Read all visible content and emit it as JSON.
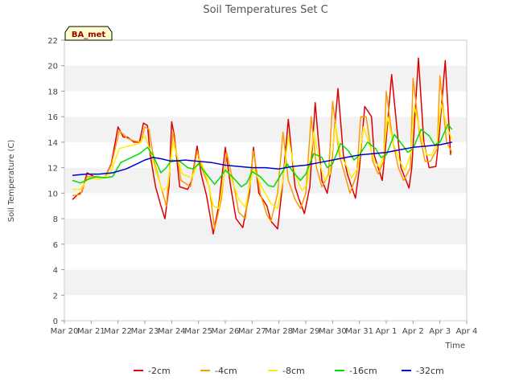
{
  "chart_data": {
    "type": "line",
    "title": "Soil Temperatures Set C",
    "xlabel": "Time",
    "ylabel": "Soil Temperature (C)",
    "badge": "BA_met",
    "xlim": [
      0,
      15
    ],
    "ylim": [
      0,
      22
    ],
    "y_ticks": [
      0,
      2,
      4,
      6,
      8,
      10,
      12,
      14,
      16,
      18,
      20,
      22
    ],
    "x_ticks": [
      {
        "pos": 0,
        "label": "Mar 20"
      },
      {
        "pos": 1,
        "label": "Mar 21"
      },
      {
        "pos": 2,
        "label": "Mar 22"
      },
      {
        "pos": 3,
        "label": "Mar 23"
      },
      {
        "pos": 4,
        "label": "Mar 24"
      },
      {
        "pos": 5,
        "label": "Mar 25"
      },
      {
        "pos": 6,
        "label": "Mar 26"
      },
      {
        "pos": 7,
        "label": "Mar 27"
      },
      {
        "pos": 8,
        "label": "Mar 28"
      },
      {
        "pos": 9,
        "label": "Mar 29"
      },
      {
        "pos": 10,
        "label": "Mar 30"
      },
      {
        "pos": 11,
        "label": "Mar 31"
      },
      {
        "pos": 12,
        "label": "Apr 1"
      },
      {
        "pos": 13,
        "label": "Apr 2"
      },
      {
        "pos": 14,
        "label": "Apr 3"
      },
      {
        "pos": 15,
        "label": "Apr 4"
      }
    ],
    "grid": "horizontal bands",
    "legend_position": "bottom",
    "series": [
      {
        "name": "-2cm",
        "color": "#dd0000",
        "x": [
          0.3,
          0.5,
          0.65,
          0.85,
          1.1,
          1.5,
          1.75,
          2.0,
          2.2,
          2.35,
          2.6,
          2.8,
          2.95,
          3.1,
          3.2,
          3.4,
          3.6,
          3.75,
          3.9,
          4.0,
          4.1,
          4.3,
          4.6,
          4.75,
          4.95,
          5.1,
          5.3,
          5.55,
          5.75,
          6.0,
          6.2,
          6.4,
          6.65,
          6.9,
          7.05,
          7.25,
          7.55,
          7.7,
          7.95,
          8.15,
          8.35,
          8.6,
          8.75,
          8.95,
          9.15,
          9.35,
          9.6,
          9.8,
          9.95,
          10.2,
          10.4,
          10.55,
          10.85,
          11.0,
          11.2,
          11.45,
          11.55,
          11.85,
          11.95,
          12.2,
          12.45,
          12.55,
          12.85,
          12.95,
          13.2,
          13.4,
          13.6,
          13.85,
          13.95,
          14.2,
          14.4
        ],
        "y": [
          9.5,
          9.9,
          10.1,
          11.6,
          11.3,
          11.2,
          12.3,
          15.2,
          14.4,
          14.4,
          14.0,
          14.0,
          15.5,
          15.3,
          13.0,
          10.5,
          9.0,
          8.0,
          10.5,
          15.6,
          14.5,
          10.5,
          10.3,
          11.0,
          13.7,
          11.5,
          9.8,
          6.8,
          9.0,
          13.6,
          10.5,
          8.0,
          7.3,
          10.0,
          13.6,
          10.0,
          9.0,
          7.8,
          7.2,
          11.0,
          15.8,
          10.5,
          9.5,
          8.4,
          10.5,
          17.1,
          11.0,
          10.0,
          12.0,
          18.2,
          13.0,
          11.5,
          9.6,
          12.0,
          16.8,
          16.0,
          13.0,
          11.0,
          13.0,
          19.3,
          14.0,
          12.0,
          10.4,
          12.0,
          20.6,
          14.0,
          12.0,
          12.1,
          14.0,
          20.4,
          13.0
        ]
      },
      {
        "name": "-4cm",
        "color": "#ff9900",
        "x": [
          0.3,
          0.6,
          0.85,
          1.1,
          1.5,
          1.75,
          2.05,
          2.35,
          2.6,
          2.85,
          3.0,
          3.15,
          3.35,
          3.6,
          3.8,
          4.05,
          4.35,
          4.7,
          4.95,
          5.15,
          5.4,
          5.6,
          5.85,
          6.05,
          6.3,
          6.5,
          6.75,
          7.05,
          7.3,
          7.55,
          7.7,
          7.95,
          8.15,
          8.35,
          8.6,
          8.8,
          9.0,
          9.2,
          9.4,
          9.6,
          9.85,
          10.0,
          10.25,
          10.45,
          10.65,
          10.9,
          11.05,
          11.25,
          11.5,
          11.7,
          11.9,
          12.0,
          12.25,
          12.45,
          12.65,
          12.9,
          13.0,
          13.25,
          13.45,
          13.65,
          13.9,
          14.0,
          14.25,
          14.45
        ],
        "y": [
          9.8,
          9.9,
          11.3,
          11.3,
          11.2,
          12.2,
          14.9,
          14.3,
          14.1,
          14.0,
          15.2,
          15.0,
          12.5,
          10.5,
          9.0,
          14.8,
          11.0,
          10.5,
          13.3,
          11.8,
          10.5,
          7.2,
          9.5,
          13.2,
          10.8,
          8.5,
          8.0,
          13.3,
          10.0,
          8.3,
          7.8,
          10.0,
          14.8,
          11.0,
          9.5,
          8.8,
          10.0,
          16.0,
          12.0,
          10.5,
          11.5,
          17.2,
          13.0,
          11.5,
          10.0,
          11.5,
          16.0,
          16.0,
          12.5,
          11.5,
          12.5,
          18.0,
          14.0,
          12.0,
          11.0,
          12.0,
          19.0,
          14.5,
          12.5,
          12.5,
          13.5,
          19.2,
          14.0,
          13.2
        ]
      },
      {
        "name": "-8cm",
        "color": "#ffee00",
        "x": [
          0.3,
          0.6,
          0.9,
          1.3,
          1.7,
          2.05,
          2.4,
          2.8,
          3.0,
          3.2,
          3.45,
          3.65,
          3.85,
          4.05,
          4.4,
          4.75,
          5.05,
          5.3,
          5.55,
          5.75,
          6.0,
          6.2,
          6.5,
          6.75,
          7.05,
          7.35,
          7.7,
          7.95,
          8.15,
          8.35,
          8.6,
          8.85,
          9.05,
          9.3,
          9.5,
          9.7,
          9.9,
          10.1,
          10.3,
          10.55,
          10.7,
          10.95,
          11.15,
          11.35,
          11.55,
          11.75,
          11.9,
          12.05,
          12.25,
          12.5,
          12.7,
          12.9,
          13.05,
          13.3,
          13.5,
          13.7,
          13.9,
          14.05,
          14.3,
          14.45
        ],
        "y": [
          10.3,
          10.3,
          11.2,
          11.1,
          11.5,
          13.5,
          13.7,
          13.9,
          14.5,
          13.3,
          11.5,
          10.2,
          10.5,
          14.0,
          11.5,
          11.2,
          12.7,
          11.3,
          9.0,
          8.8,
          12.0,
          11.3,
          9.5,
          8.9,
          12.0,
          10.5,
          9.2,
          8.8,
          11.0,
          14.5,
          11.5,
          10.2,
          10.7,
          14.8,
          12.5,
          11.0,
          11.5,
          15.4,
          13.0,
          12.0,
          11.2,
          12.0,
          15.2,
          14.0,
          12.5,
          12.0,
          13.0,
          16.0,
          14.0,
          12.5,
          11.8,
          13.0,
          16.8,
          14.5,
          13.0,
          13.0,
          14.0,
          17.0,
          15.0,
          14.2
        ]
      },
      {
        "name": "-16cm",
        "color": "#00dd00",
        "x": [
          0.3,
          0.6,
          0.9,
          1.2,
          1.5,
          1.8,
          2.1,
          2.5,
          2.8,
          3.1,
          3.3,
          3.6,
          3.8,
          4.0,
          4.3,
          4.6,
          4.8,
          5.0,
          5.3,
          5.6,
          5.8,
          6.0,
          6.3,
          6.6,
          6.8,
          7.0,
          7.3,
          7.6,
          7.8,
          8.0,
          8.3,
          8.6,
          8.8,
          9.0,
          9.3,
          9.6,
          9.8,
          10.0,
          10.3,
          10.6,
          10.8,
          11.0,
          11.3,
          11.6,
          11.8,
          12.0,
          12.3,
          12.6,
          12.8,
          13.0,
          13.3,
          13.6,
          13.8,
          14.0,
          14.3,
          14.45
        ],
        "y": [
          11.0,
          10.8,
          11.1,
          11.3,
          11.2,
          11.3,
          12.4,
          12.8,
          13.1,
          13.6,
          13.0,
          11.6,
          12.0,
          12.6,
          12.5,
          12.0,
          11.9,
          12.3,
          11.5,
          10.7,
          11.2,
          11.8,
          11.2,
          10.5,
          10.8,
          11.7,
          11.3,
          10.6,
          10.5,
          11.2,
          12.3,
          11.5,
          11.0,
          11.5,
          13.1,
          12.8,
          12.0,
          12.3,
          13.9,
          13.3,
          12.6,
          13.0,
          14.0,
          13.5,
          12.8,
          13.0,
          14.6,
          13.8,
          13.2,
          13.5,
          15.0,
          14.5,
          13.8,
          14.0,
          15.4,
          15.0
        ]
      },
      {
        "name": "-32cm",
        "color": "#0000cc",
        "x": [
          0.3,
          0.8,
          1.3,
          1.8,
          2.3,
          2.7,
          3.0,
          3.3,
          3.6,
          4.0,
          4.5,
          5.0,
          5.5,
          6.0,
          6.5,
          7.0,
          7.5,
          8.0,
          8.5,
          9.0,
          9.5,
          10.0,
          10.5,
          11.0,
          11.5,
          12.0,
          12.5,
          13.0,
          13.5,
          14.0,
          14.45
        ],
        "y": [
          11.4,
          11.5,
          11.5,
          11.6,
          11.9,
          12.3,
          12.6,
          12.8,
          12.7,
          12.5,
          12.6,
          12.5,
          12.4,
          12.2,
          12.1,
          12.0,
          12.0,
          11.9,
          12.1,
          12.2,
          12.4,
          12.6,
          12.8,
          13.0,
          13.1,
          13.2,
          13.4,
          13.6,
          13.7,
          13.8,
          14.0
        ]
      }
    ]
  }
}
